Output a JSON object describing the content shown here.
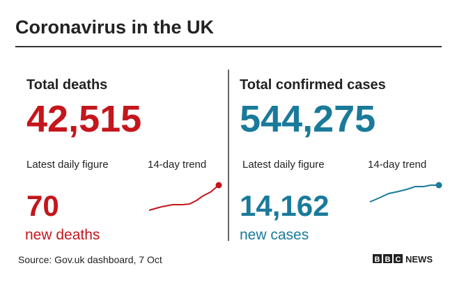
{
  "header": {
    "title": "Coronavirus in the UK"
  },
  "panels": [
    {
      "heading": "Total deaths",
      "total": "42,515",
      "latest_label": "Latest daily figure",
      "trend_label": "14-day trend",
      "latest": "70",
      "latest_unit": "new deaths"
    },
    {
      "heading": "Total confirmed cases",
      "total": "544,275",
      "latest_label": "Latest daily figure",
      "trend_label": "14-day trend",
      "latest": "14,162",
      "latest_unit": "new cases"
    }
  ],
  "footer": {
    "source": "Source: Gov.uk dashboard, 7 Oct",
    "logo": [
      "B",
      "B",
      "C"
    ],
    "brand": "NEWS"
  }
}
